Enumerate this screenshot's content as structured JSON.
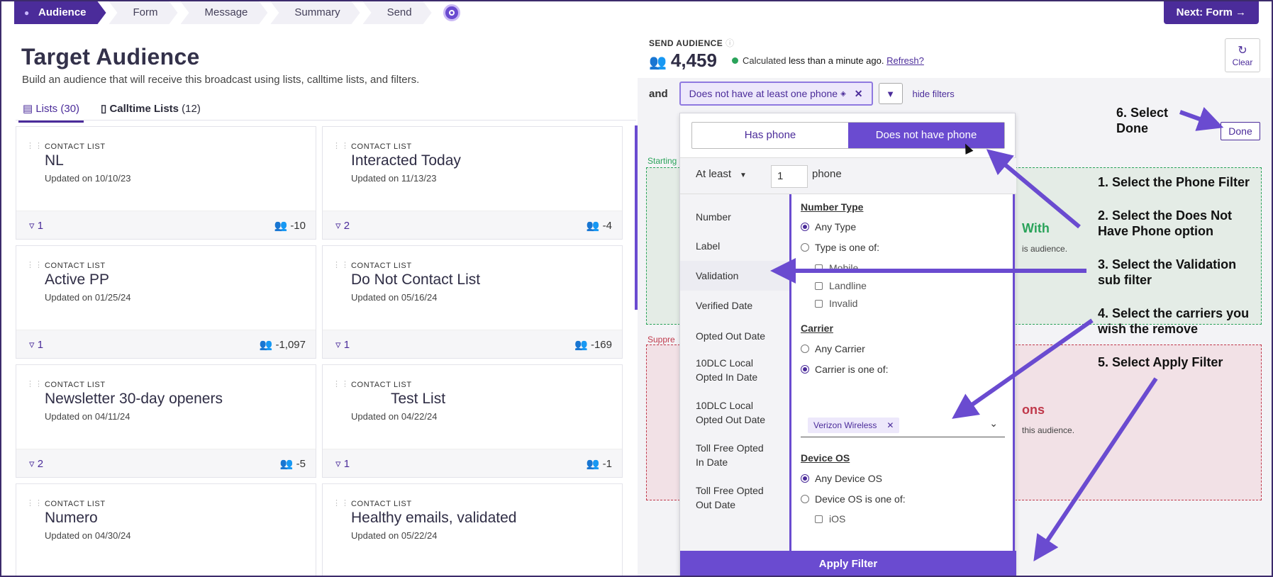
{
  "stepper": {
    "steps": [
      "Audience",
      "Form",
      "Message",
      "Summary",
      "Send"
    ],
    "next_label": "Next: Form →"
  },
  "page": {
    "title": "Target Audience",
    "subtitle": "Build an audience that will receive this broadcast using lists, calltime lists, and filters."
  },
  "tabs": [
    {
      "label": "Lists",
      "count": "(30)"
    },
    {
      "label": "Calltime Lists",
      "count": "(12)"
    }
  ],
  "cards": [
    {
      "kind": "CONTACT LIST",
      "name": "NL",
      "updated": "Updated on 10/10/23",
      "filters": "1",
      "people": "-10"
    },
    {
      "kind": "CONTACT LIST",
      "name": "Interacted Today",
      "updated": "Updated on 11/13/23",
      "filters": "2",
      "people": "-4"
    },
    {
      "kind": "CONTACT LIST",
      "name": "Active PP",
      "updated": "Updated on 01/25/24",
      "filters": "1",
      "people": "-1,097"
    },
    {
      "kind": "CONTACT LIST",
      "name": "Do Not Contact List",
      "updated": "Updated on 05/16/24",
      "filters": "1",
      "people": "-169"
    },
    {
      "kind": "CONTACT LIST",
      "name": "Newsletter 30-day openers",
      "updated": "Updated on 04/11/24",
      "filters": "2",
      "people": "-5"
    },
    {
      "kind": "CONTACT LIST",
      "name": "Test List",
      "updated": "Updated on 04/22/24",
      "filters": "1",
      "people": "-1"
    },
    {
      "kind": "CONTACT LIST",
      "name": "Numero",
      "updated": "Updated on 04/30/24",
      "filters": "",
      "people": ""
    },
    {
      "kind": "CONTACT LIST",
      "name": "Healthy emails, validated",
      "updated": "Updated on 05/22/24",
      "filters": "",
      "people": ""
    }
  ],
  "send_audience": {
    "label": "SEND AUDIENCE",
    "count": "4,459",
    "status_prefix": "Calculated",
    "status_time": "less than a minute ago.",
    "refresh": "Refresh?",
    "clear": "Clear"
  },
  "filter_bar": {
    "and_label": "and",
    "chip": "Does not have at least one phone",
    "hide_filters": "hide filters",
    "done": "Done"
  },
  "starting": {
    "label": "Starting",
    "with": "With",
    "note": "is audience."
  },
  "suppress": {
    "label": "Suppre",
    "ons": "ons",
    "note": "this audience."
  },
  "popover": {
    "has_phone": "Has phone",
    "not_have_phone": "Does not have phone",
    "at_least": "At least",
    "count": "1",
    "phone": "phone",
    "sub_filters": [
      "Number",
      "Label",
      "Validation",
      "Verified Date",
      "Opted Out Date",
      "10DLC Local Opted In Date",
      "10DLC Local Opted Out Date",
      "Toll Free Opted In Date",
      "Toll Free Opted Out Date"
    ],
    "number_type": {
      "heading": "Number Type",
      "any": "Any Type",
      "one_of": "Type is one of:",
      "options": [
        "Mobile",
        "Landline",
        "Invalid"
      ]
    },
    "carrier": {
      "heading": "Carrier",
      "any": "Any Carrier",
      "one_of": "Carrier is one of:",
      "selected": "Verizon Wireless"
    },
    "device_os": {
      "heading": "Device OS",
      "any": "Any Device OS",
      "one_of": "Device OS is one of:",
      "options": [
        "iOS"
      ]
    },
    "apply": "Apply Filter"
  },
  "annotations": {
    "a1": "1. Select the Phone Filter",
    "a2a": "2. Select the Does Not",
    "a2b": "Have Phone option",
    "a3a": "3. Select the Validation",
    "a3b": "sub filter",
    "a4a": "4. Select the carriers you",
    "a4b": "wish the remove",
    "a5": "5. Select Apply Filter",
    "a6a": "6. Select",
    "a6b": "Done"
  },
  "colors": {
    "brand": "#4b2c9a",
    "accent": "#6a4bd0",
    "green": "#2aa35a",
    "red": "#c0394b"
  }
}
